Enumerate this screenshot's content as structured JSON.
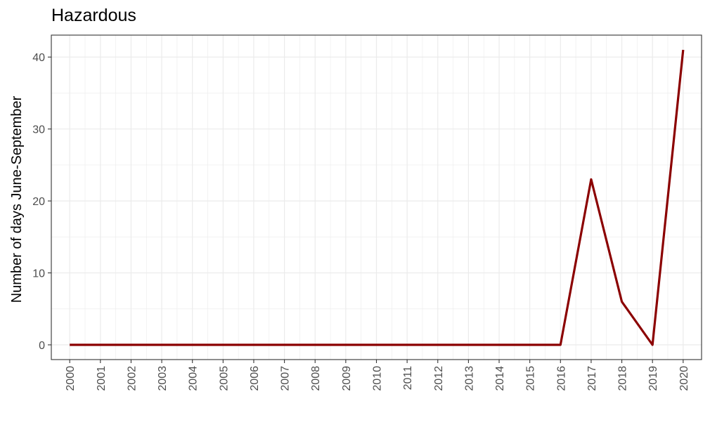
{
  "chart_data": {
    "type": "line",
    "title": "Hazardous",
    "xlabel": "",
    "ylabel": "Number of days June-September",
    "x": [
      "2000",
      "2001",
      "2002",
      "2003",
      "2004",
      "2005",
      "2006",
      "2007",
      "2008",
      "2009",
      "2010",
      "2011",
      "2012",
      "2013",
      "2014",
      "2015",
      "2016",
      "2017",
      "2018",
      "2019",
      "2020"
    ],
    "series": [
      {
        "values": [
          0,
          0,
          0,
          0,
          0,
          0,
          0,
          0,
          0,
          0,
          0,
          0,
          0,
          0,
          0,
          0,
          0,
          23,
          6,
          0,
          41
        ]
      }
    ],
    "ylim": [
      -2.05,
      43.05
    ],
    "yticks": [
      0,
      10,
      20,
      30,
      40
    ],
    "grid": true,
    "legend": "none",
    "colors": {
      "line": "#8B0000",
      "grid": "#ebebeb",
      "panel_border": "#333333",
      "tick_text": "#4d4d4d"
    }
  }
}
